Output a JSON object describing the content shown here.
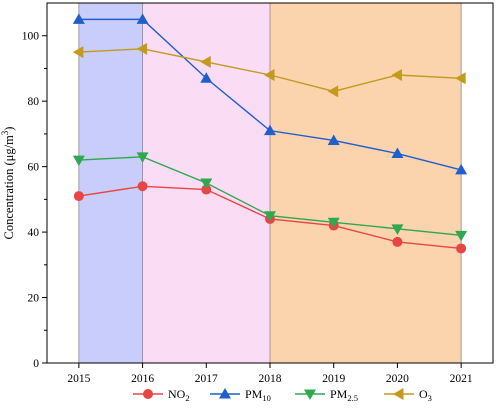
{
  "chart_data": {
    "type": "line",
    "x": [
      2015,
      2016,
      2017,
      2018,
      2019,
      2020,
      2021
    ],
    "xlim": [
      2014.5,
      2021.5
    ],
    "ylim": [
      0,
      110
    ],
    "yticks": [
      0,
      20,
      40,
      60,
      80,
      100
    ],
    "ylabel": "Concentration (μg/m³)",
    "ylabel_parts": {
      "main": "Concentration (μg/m",
      "sup": "3",
      "end": ")"
    },
    "grid": false,
    "legend_position": "bottom",
    "background_bands": [
      {
        "from": 2015,
        "to": 2016,
        "color": "#c9cdfb"
      },
      {
        "from": 2016,
        "to": 2018,
        "color": "#fbdcf5"
      },
      {
        "from": 2018,
        "to": 2021,
        "color": "#fbd3ad"
      }
    ],
    "series": [
      {
        "name": "NO2",
        "label_main": "NO",
        "label_sub": "2",
        "color": "#e84545",
        "marker": "circle",
        "values": [
          51,
          54,
          53,
          44,
          42,
          37,
          35
        ]
      },
      {
        "name": "PM10",
        "label_main": "PM",
        "label_sub": "10",
        "color": "#1f5fcc",
        "marker": "triangle-up",
        "values": [
          105,
          105,
          87,
          71,
          68,
          64,
          59
        ]
      },
      {
        "name": "PM2.5",
        "label_main": "PM",
        "label_sub": "2.5",
        "color": "#2fa84f",
        "marker": "triangle-down",
        "values": [
          62,
          63,
          55,
          45,
          43,
          41,
          39
        ]
      },
      {
        "name": "O3",
        "label_main": "O",
        "label_sub": "3",
        "color": "#c49a1e",
        "marker": "triangle-left",
        "values": [
          95,
          96,
          92,
          88,
          83,
          88,
          87
        ]
      }
    ]
  }
}
